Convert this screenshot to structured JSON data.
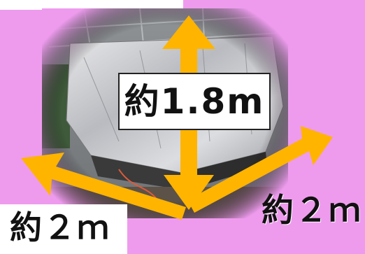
{
  "labels": {
    "height": "約1.8m",
    "width_left": "約２ｍ",
    "width_right": "約２ｍ"
  },
  "colors": {
    "background": "#ee9bee",
    "arrow": "#ffb400",
    "label_box": "#ffffff"
  },
  "icons": {
    "vertical_arrow": "double-arrow-vertical",
    "left_arrow": "double-arrow-diagonal-left",
    "right_arrow": "double-arrow-diagonal-right"
  }
}
